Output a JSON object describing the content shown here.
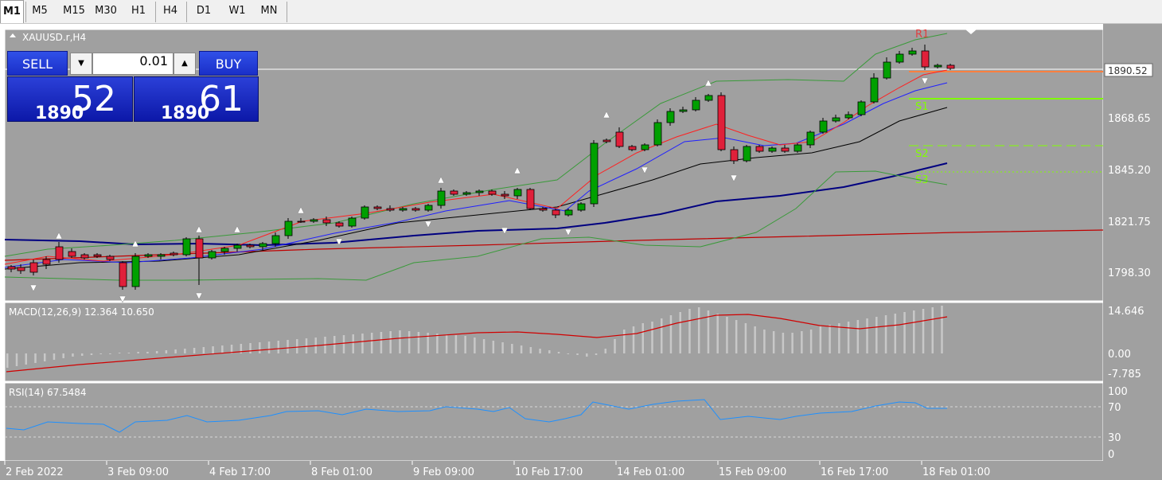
{
  "timeframes": [
    "M1",
    "M5",
    "M15",
    "M30",
    "H1",
    "H4",
    "D1",
    "W1",
    "MN"
  ],
  "active_timeframe": "M1",
  "chart": {
    "symbol_label": "XAUUSD.r,H4",
    "current_price": "1890.52",
    "price_ticks": [
      "1868.65",
      "1845.20",
      "1821.75",
      "1798.30"
    ],
    "pivot_labels": [
      "R1",
      "S1",
      "S2",
      "S3"
    ],
    "date_ticks": [
      "2 Feb 2022",
      "3 Feb 09:00",
      "4 Feb 17:00",
      "8 Feb 01:00",
      "9 Feb 09:00",
      "10 Feb 17:00",
      "14 Feb 01:00",
      "15 Feb 09:00",
      "16 Feb 17:00",
      "18 Feb 01:00"
    ]
  },
  "trade_panel": {
    "sell_label": "SELL",
    "buy_label": "BUY",
    "lot_value": "0.01",
    "bid_prefix": "1890",
    "bid_big": "52",
    "ask_prefix": "1890",
    "ask_big": "61"
  },
  "macd": {
    "label": "MACD(12,26,9) 12.364 10.650",
    "ticks": [
      "14.646",
      "0.00",
      "-7.785"
    ]
  },
  "rsi": {
    "label": "RSI(14) 67.5484",
    "ticks": [
      "100",
      "70",
      "30",
      "0"
    ]
  },
  "colors": {
    "chart_bg": "#a0a0a0",
    "bull_candle": "#00a000",
    "bear_candle": "#e0203a",
    "ma_fast": "#ff2020",
    "ma_mid": "#2020ff",
    "ma_slow": "#000000",
    "ma_long": "#000080",
    "ma_trend": "#c00000",
    "bollinger": "#3a9a3a",
    "pivot_s": "#80ff00",
    "pivot_r": "#ff4040",
    "macd_hist": "#c8c8c8",
    "macd_signal": "#d00000",
    "rsi_line": "#1e90ff"
  }
}
